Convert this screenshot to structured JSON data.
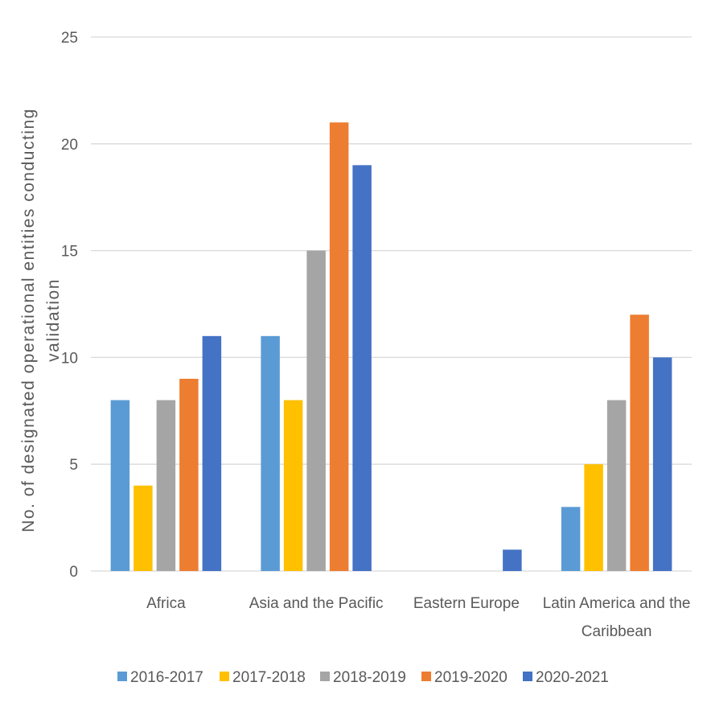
{
  "chart_data": {
    "type": "bar",
    "title": "",
    "ylabel": "No. of designated operational entities conducting validation",
    "ylabel_lines": [
      "No. of designated operational entities conducting",
      "validation"
    ],
    "xlabel": "",
    "categories": [
      "Africa",
      "Asia and the Pacific",
      "Eastern Europe",
      "Latin America and the Caribbean"
    ],
    "category_label_lines": [
      [
        "Africa"
      ],
      [
        "Asia and the Pacific"
      ],
      [
        "Eastern Europe"
      ],
      [
        "Latin America and the",
        "Caribbean"
      ]
    ],
    "series": [
      {
        "name": "2016-2017",
        "color": "#5b9bd5",
        "values": [
          8,
          11,
          0,
          3
        ]
      },
      {
        "name": "2017-2018",
        "color": "#ffc000",
        "values": [
          4,
          8,
          0,
          5
        ]
      },
      {
        "name": "2018-2019",
        "color": "#a5a5a5",
        "values": [
          8,
          15,
          0,
          8
        ]
      },
      {
        "name": "2019-2020",
        "color": "#ed7d31",
        "values": [
          9,
          21,
          0,
          12
        ]
      },
      {
        "name": "2020-2021",
        "color": "#4472c4",
        "values": [
          11,
          19,
          1,
          10
        ]
      }
    ],
    "ylim": [
      0,
      25
    ],
    "yticks": [
      "0",
      "5",
      "10",
      "15",
      "20",
      "25"
    ],
    "grid": true,
    "legend_position": "bottom",
    "gridline_color": "#d9d9d9"
  }
}
